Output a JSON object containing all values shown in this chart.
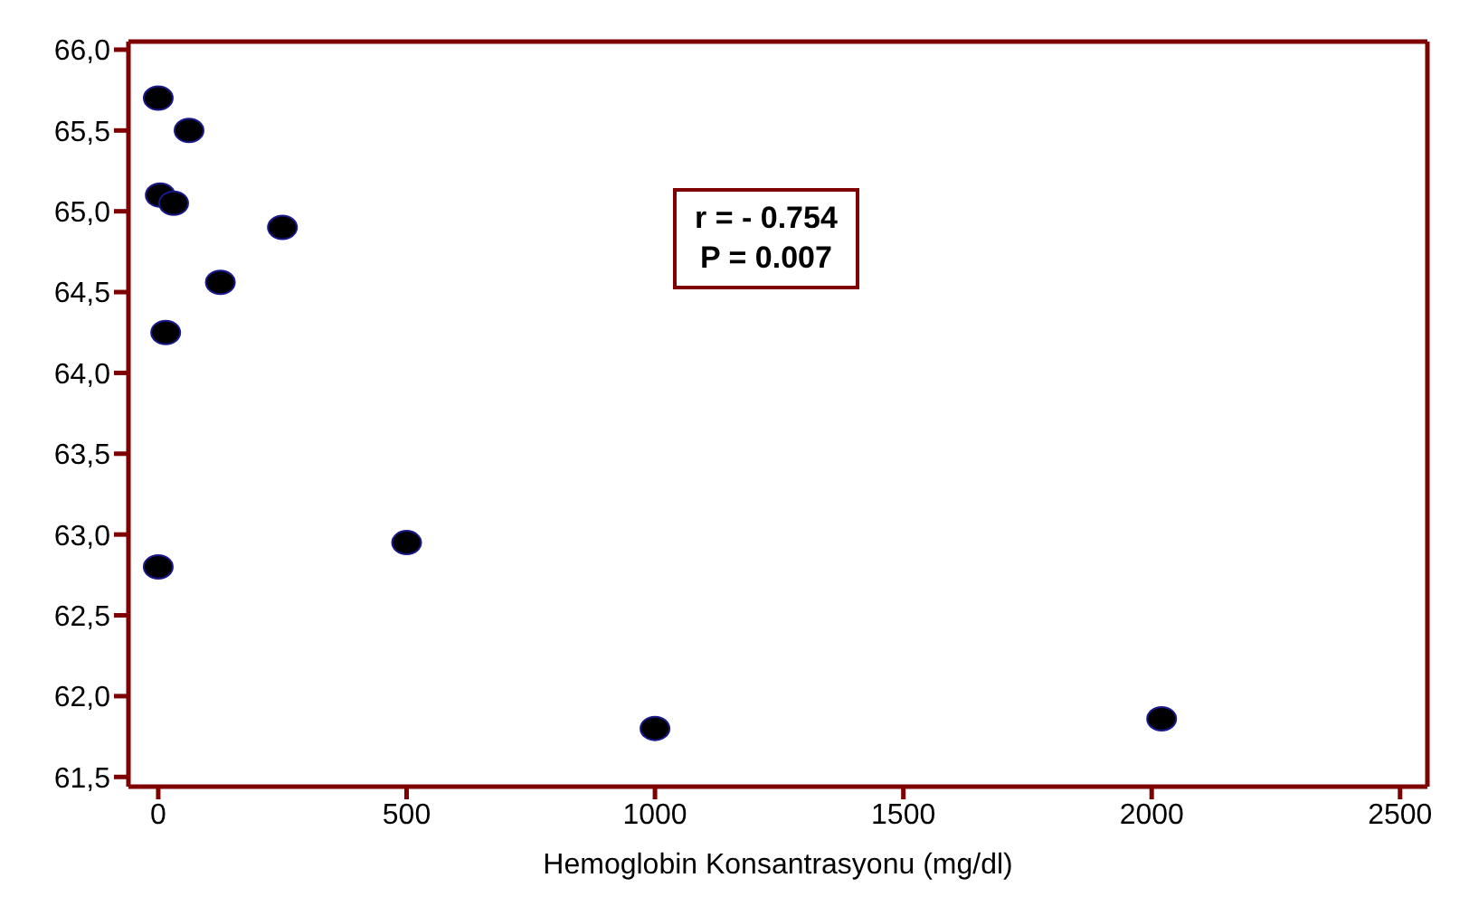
{
  "chart_data": {
    "type": "scatter",
    "xlabel": "Hemoglobin Konsantrasyonu (mg/dl)",
    "x": [
      0,
      0,
      4,
      15,
      31,
      62,
      125,
      250,
      500,
      1000,
      2020
    ],
    "series": [
      {
        "color": "#000000",
        "values": [
          65.7,
          62.8,
          65.1,
          64.25,
          65.05,
          65.5,
          64.56,
          64.9,
          62.95,
          61.8,
          61.86
        ]
      }
    ],
    "xlim": [
      -60,
      2555
    ],
    "xticks": [
      0,
      500,
      1000,
      1500,
      2000,
      2500
    ],
    "ylim": [
      61.44,
      66.05
    ],
    "yticks": [
      {
        "value": 61.5,
        "label": "61,5"
      },
      {
        "value": 62,
        "label": "62,0"
      },
      {
        "value": 62.5,
        "label": "62,5"
      },
      {
        "value": 63,
        "label": "63,0"
      },
      {
        "value": 63.5,
        "label": "63,5"
      },
      {
        "value": 64,
        "label": "64,0"
      },
      {
        "value": 64.5,
        "label": "64,5"
      },
      {
        "value": 65,
        "label": "65,0"
      },
      {
        "value": 65.5,
        "label": "65,5"
      },
      {
        "value": 66,
        "label": "66,0"
      }
    ],
    "annotations": [
      "r = - 0.754",
      "P = 0.007"
    ],
    "marker": "circle",
    "legend": false
  }
}
